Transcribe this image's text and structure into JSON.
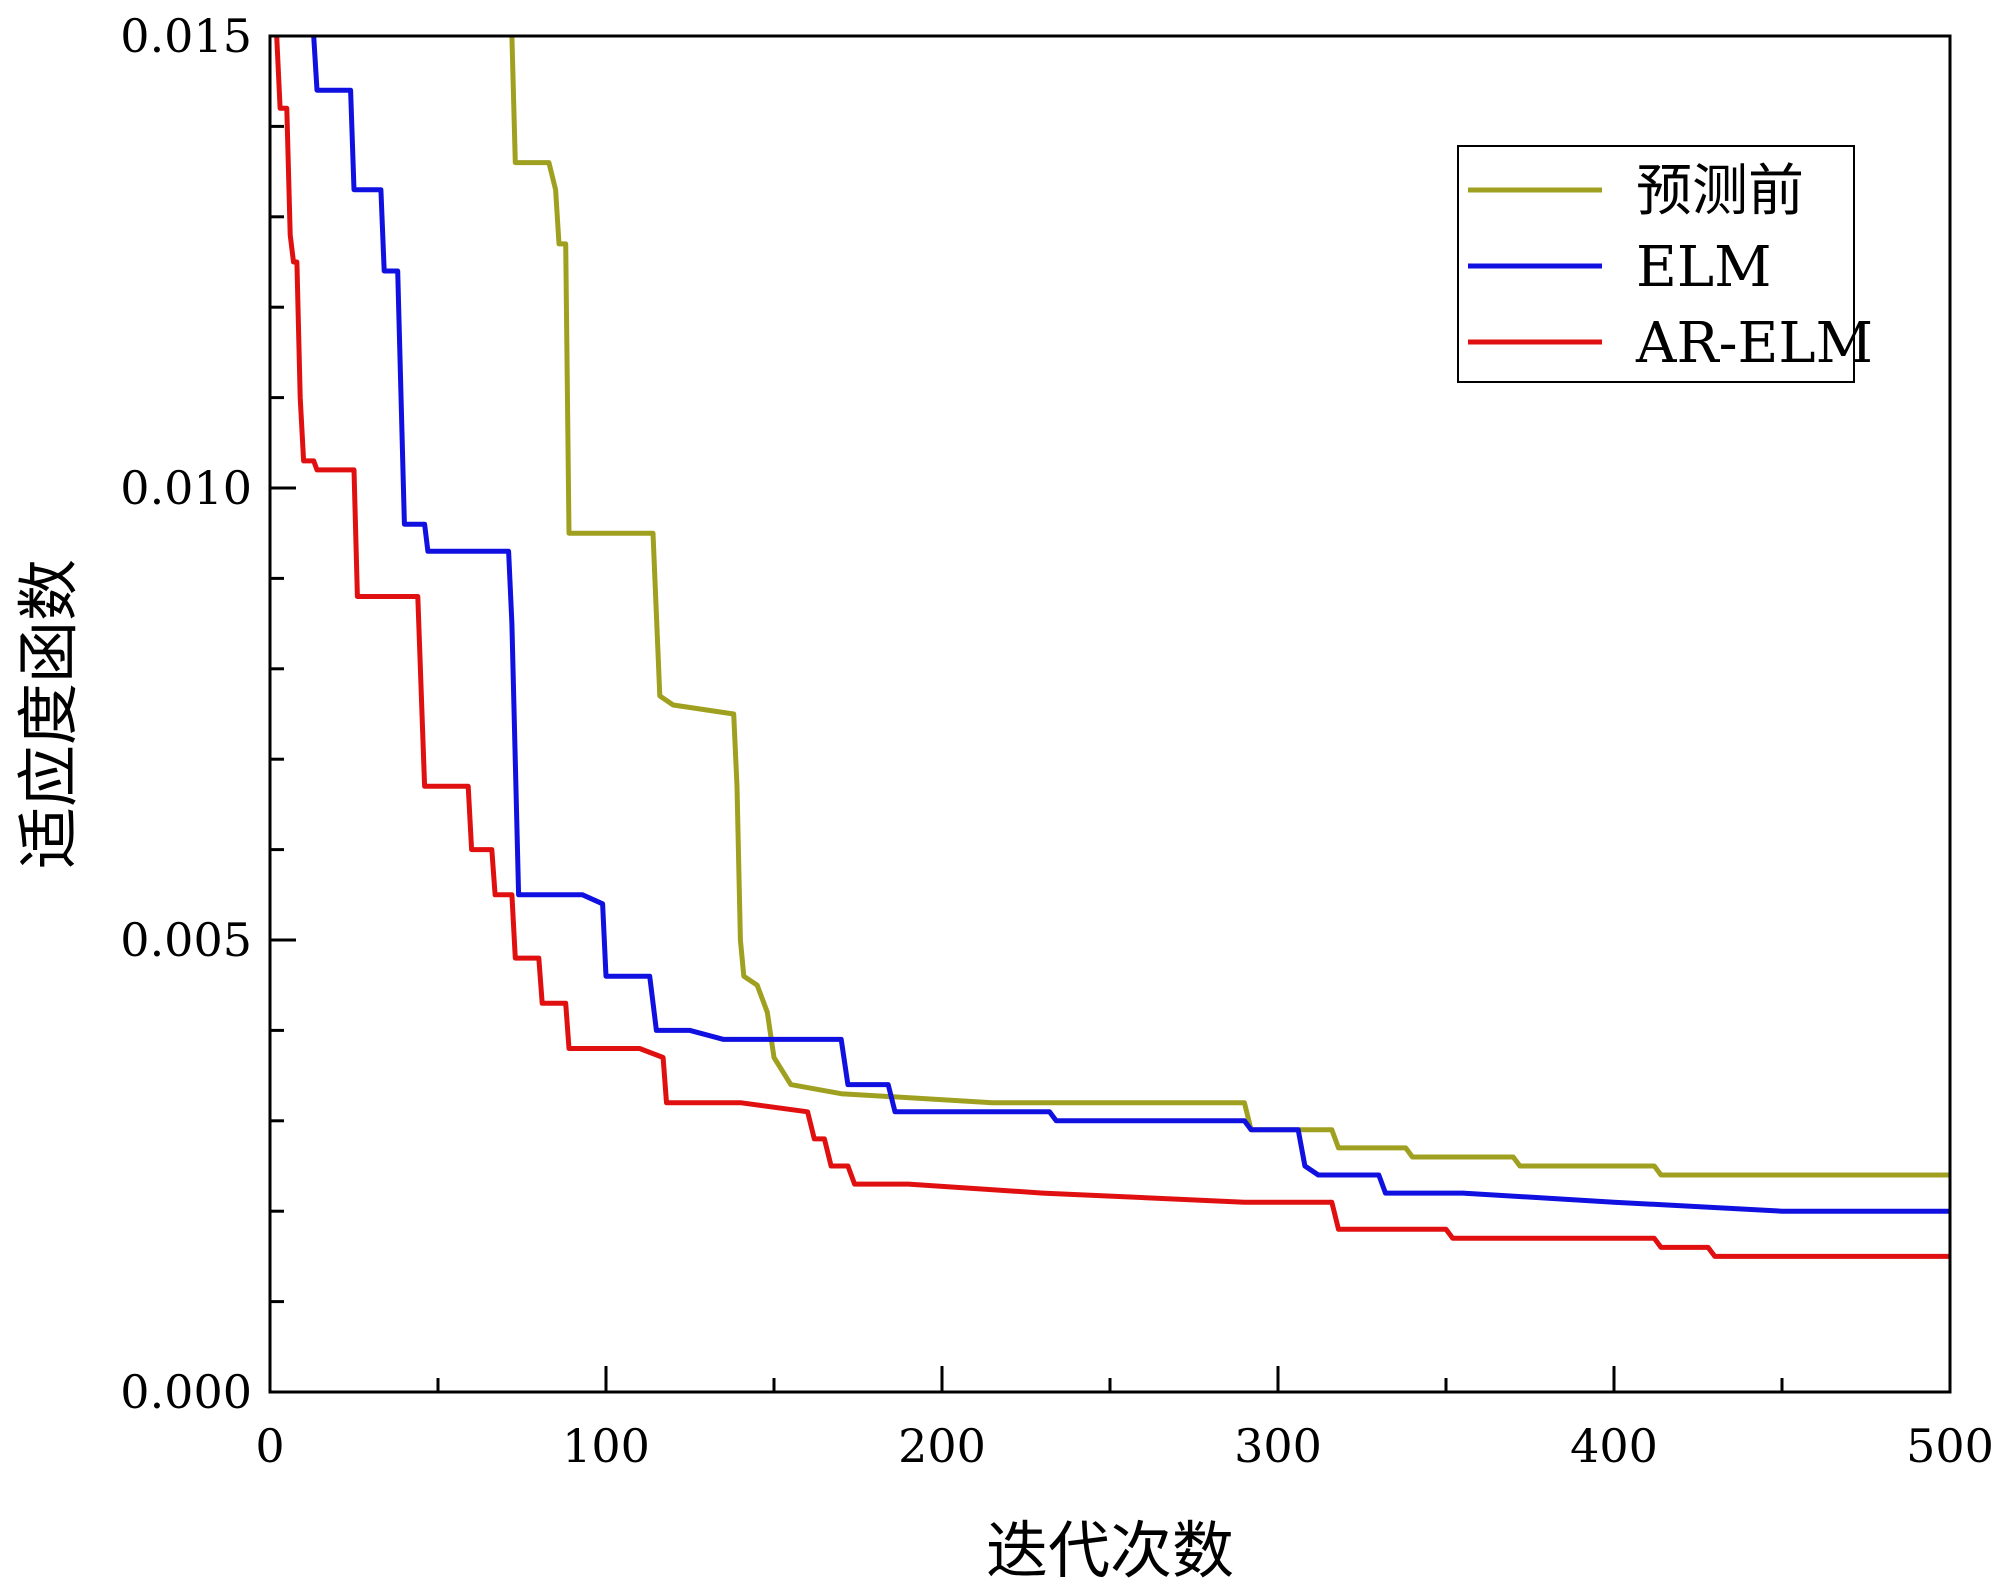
{
  "chart_data": {
    "type": "line",
    "xlabel": "迭代次数",
    "ylabel": "适应度函数",
    "xlim": [
      0,
      500
    ],
    "ylim": [
      0,
      0.015
    ],
    "xticks": [
      "0",
      "100",
      "200",
      "300",
      "400",
      "500"
    ],
    "yticks": [
      "0.000",
      "0.005",
      "0.010",
      "0.015"
    ],
    "legend_position": "top-right",
    "grid": false,
    "series": [
      {
        "name": "预测前",
        "color": "#a0a020",
        "points": [
          [
            72,
            0.015
          ],
          [
            73,
            0.0136
          ],
          [
            83,
            0.0136
          ],
          [
            85,
            0.0133
          ],
          [
            86,
            0.0127
          ],
          [
            88,
            0.0127
          ],
          [
            89,
            0.0095
          ],
          [
            114,
            0.0095
          ],
          [
            116,
            0.0077
          ],
          [
            120,
            0.0076
          ],
          [
            138,
            0.0075
          ],
          [
            139,
            0.0067
          ],
          [
            140,
            0.005
          ],
          [
            141,
            0.0046
          ],
          [
            145,
            0.0045
          ],
          [
            148,
            0.0042
          ],
          [
            150,
            0.0037
          ],
          [
            155,
            0.0034
          ],
          [
            170,
            0.0033
          ],
          [
            215,
            0.0032
          ],
          [
            290,
            0.0032
          ],
          [
            292,
            0.0029
          ],
          [
            316,
            0.0029
          ],
          [
            318,
            0.0027
          ],
          [
            338,
            0.0027
          ],
          [
            340,
            0.0026
          ],
          [
            370,
            0.0026
          ],
          [
            372,
            0.0025
          ],
          [
            412,
            0.0025
          ],
          [
            414,
            0.0024
          ],
          [
            500,
            0.0024
          ]
        ]
      },
      {
        "name": "ELM",
        "color": "#1010e0",
        "points": [
          [
            13,
            0.015
          ],
          [
            14,
            0.0144
          ],
          [
            24,
            0.0144
          ],
          [
            25,
            0.0133
          ],
          [
            33,
            0.0133
          ],
          [
            34,
            0.0124
          ],
          [
            38,
            0.0124
          ],
          [
            40,
            0.0096
          ],
          [
            46,
            0.0096
          ],
          [
            47,
            0.0093
          ],
          [
            71,
            0.0093
          ],
          [
            72,
            0.0085
          ],
          [
            74,
            0.0055
          ],
          [
            93,
            0.0055
          ],
          [
            99,
            0.0054
          ],
          [
            100,
            0.0046
          ],
          [
            113,
            0.0046
          ],
          [
            115,
            0.004
          ],
          [
            125,
            0.004
          ],
          [
            135,
            0.0039
          ],
          [
            170,
            0.0039
          ],
          [
            172,
            0.0034
          ],
          [
            184,
            0.0034
          ],
          [
            186,
            0.0031
          ],
          [
            232,
            0.0031
          ],
          [
            234,
            0.003
          ],
          [
            260,
            0.003
          ],
          [
            290,
            0.003
          ],
          [
            292,
            0.0029
          ],
          [
            306,
            0.0029
          ],
          [
            308,
            0.0025
          ],
          [
            312,
            0.0024
          ],
          [
            330,
            0.0024
          ],
          [
            332,
            0.0022
          ],
          [
            355,
            0.0022
          ],
          [
            400,
            0.0021
          ],
          [
            450,
            0.002
          ],
          [
            500,
            0.002
          ]
        ]
      },
      {
        "name": "AR-ELM",
        "color": "#e01010",
        "points": [
          [
            2,
            0.015
          ],
          [
            3,
            0.0142
          ],
          [
            5,
            0.0142
          ],
          [
            6,
            0.0128
          ],
          [
            7,
            0.0125
          ],
          [
            8,
            0.0125
          ],
          [
            9,
            0.011
          ],
          [
            10,
            0.0103
          ],
          [
            13,
            0.0103
          ],
          [
            14,
            0.0102
          ],
          [
            25,
            0.0102
          ],
          [
            26,
            0.0088
          ],
          [
            44,
            0.0088
          ],
          [
            46,
            0.0067
          ],
          [
            59,
            0.0067
          ],
          [
            60,
            0.006
          ],
          [
            66,
            0.006
          ],
          [
            67,
            0.0055
          ],
          [
            72,
            0.0055
          ],
          [
            73,
            0.0048
          ],
          [
            80,
            0.0048
          ],
          [
            81,
            0.0043
          ],
          [
            88,
            0.0043
          ],
          [
            89,
            0.0038
          ],
          [
            110,
            0.0038
          ],
          [
            117,
            0.0037
          ],
          [
            118,
            0.0032
          ],
          [
            140,
            0.0032
          ],
          [
            160,
            0.0031
          ],
          [
            162,
            0.0028
          ],
          [
            165,
            0.0028
          ],
          [
            167,
            0.0025
          ],
          [
            172,
            0.0025
          ],
          [
            174,
            0.0023
          ],
          [
            190,
            0.0023
          ],
          [
            230,
            0.0022
          ],
          [
            290,
            0.0021
          ],
          [
            316,
            0.0021
          ],
          [
            318,
            0.0018
          ],
          [
            350,
            0.0018
          ],
          [
            352,
            0.0017
          ],
          [
            412,
            0.0017
          ],
          [
            414,
            0.0016
          ],
          [
            428,
            0.0016
          ],
          [
            430,
            0.0015
          ],
          [
            500,
            0.0015
          ]
        ]
      }
    ]
  }
}
